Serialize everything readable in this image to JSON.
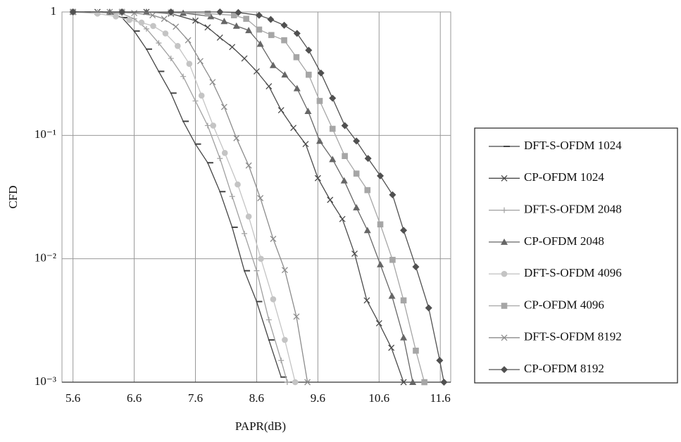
{
  "chart_data": {
    "type": "line",
    "x_label": "PAPR(dB)",
    "y_label": "CFD",
    "log_y": true,
    "grid": true,
    "legend": "right",
    "xlim": [
      5.42,
      11.77
    ],
    "xticks": [
      5.6,
      6.6,
      7.6,
      8.6,
      9.6,
      10.6,
      11.6
    ],
    "ylim": [
      0.001,
      1
    ],
    "yticks": [
      1,
      {
        "value": 0.1,
        "label": "10⁻¹"
      },
      {
        "value": 0.01,
        "label": "10⁻²"
      },
      {
        "value": 0.001,
        "label": "10⁻³"
      }
    ],
    "series": [
      {
        "name": "DFT-S-OFDM 1024",
        "color": "#444444",
        "marker": "dash",
        "x": [
          5.6,
          5.8,
          6.0,
          6.2,
          6.4,
          6.6,
          6.8,
          7.0,
          7.2,
          7.4,
          7.6,
          7.8,
          8.0,
          8.2,
          8.4,
          8.6,
          8.8,
          9.0
        ],
        "values": [
          1,
          1,
          1,
          0.98,
          0.9,
          0.7,
          0.5,
          0.33,
          0.22,
          0.13,
          0.085,
          0.06,
          0.035,
          0.018,
          0.008,
          0.0045,
          0.0022,
          0.0011
        ]
      },
      {
        "name": "CP-OFDM 1024",
        "color": "#4a4a4a",
        "marker": "x",
        "x": [
          5.6,
          6.0,
          6.4,
          6.8,
          7.2,
          7.6,
          7.8,
          8.0,
          8.2,
          8.4,
          8.6,
          8.8,
          9.0,
          9.2,
          9.4,
          9.6,
          9.8,
          10.0,
          10.2,
          10.4,
          10.6,
          10.8,
          11.0
        ],
        "values": [
          1,
          1,
          1,
          1,
          0.97,
          0.85,
          0.75,
          0.62,
          0.52,
          0.42,
          0.33,
          0.25,
          0.16,
          0.115,
          0.085,
          0.045,
          0.03,
          0.021,
          0.011,
          0.0046,
          0.003,
          0.0019,
          0.001
        ]
      },
      {
        "name": "DFT-S-OFDM 2048",
        "color": "#a0a0a0",
        "marker": "plus",
        "x": [
          5.6,
          6.0,
          6.4,
          6.6,
          6.8,
          7.0,
          7.2,
          7.4,
          7.6,
          7.8,
          8.0,
          8.2,
          8.4,
          8.6,
          8.8,
          9.0,
          9.1
        ],
        "values": [
          1,
          1,
          0.97,
          0.88,
          0.73,
          0.56,
          0.42,
          0.3,
          0.19,
          0.12,
          0.065,
          0.032,
          0.016,
          0.008,
          0.0032,
          0.0015,
          0.001
        ]
      },
      {
        "name": "CP-OFDM  2048",
        "color": "#666666",
        "marker": "triangle",
        "x": [
          5.6,
          6.2,
          6.8,
          7.4,
          7.85,
          8.07,
          8.27,
          8.47,
          8.66,
          8.87,
          9.06,
          9.26,
          9.44,
          9.63,
          9.84,
          10.03,
          10.23,
          10.41,
          10.62,
          10.81,
          11.0,
          11.15
        ],
        "values": [
          1,
          1,
          1,
          0.98,
          0.92,
          0.84,
          0.77,
          0.71,
          0.55,
          0.37,
          0.31,
          0.24,
          0.157,
          0.09,
          0.064,
          0.043,
          0.026,
          0.017,
          0.009,
          0.005,
          0.0023,
          0.001
        ]
      },
      {
        "name": "DFT-S-OFDM 4096",
        "color": "#c4c4c4",
        "marker": "circle",
        "x": [
          5.6,
          6.0,
          6.3,
          6.52,
          6.72,
          6.91,
          7.11,
          7.31,
          7.5,
          7.7,
          7.89,
          8.08,
          8.29,
          8.47,
          8.67,
          8.87,
          9.06,
          9.23
        ],
        "values": [
          1,
          0.97,
          0.92,
          0.86,
          0.82,
          0.77,
          0.67,
          0.53,
          0.38,
          0.21,
          0.12,
          0.072,
          0.04,
          0.022,
          0.01,
          0.0047,
          0.0022,
          0.001
        ]
      },
      {
        "name": "CP-OFDM 4096",
        "color": "#a6a6a6",
        "marker": "square",
        "x": [
          5.6,
          6.4,
          7.2,
          7.8,
          8.23,
          8.43,
          8.64,
          8.84,
          9.05,
          9.25,
          9.45,
          9.63,
          9.84,
          10.04,
          10.23,
          10.41,
          10.62,
          10.82,
          11.0,
          11.2,
          11.34
        ],
        "values": [
          1,
          1,
          0.99,
          0.97,
          0.94,
          0.88,
          0.72,
          0.65,
          0.59,
          0.43,
          0.31,
          0.19,
          0.113,
          0.068,
          0.049,
          0.036,
          0.019,
          0.0098,
          0.0046,
          0.0018,
          0.001
        ]
      },
      {
        "name": "DFT-S-OFDM 8192",
        "color": "#8c8c8c",
        "marker": "x",
        "x": [
          5.6,
          6.2,
          6.6,
          6.9,
          7.09,
          7.28,
          7.48,
          7.68,
          7.88,
          8.07,
          8.27,
          8.47,
          8.66,
          8.87,
          9.06,
          9.25,
          9.43
        ],
        "values": [
          1,
          1,
          0.98,
          0.94,
          0.88,
          0.76,
          0.59,
          0.4,
          0.27,
          0.17,
          0.095,
          0.057,
          0.031,
          0.0145,
          0.0081,
          0.0034,
          0.001
        ]
      },
      {
        "name": "CP-OFDM 8192",
        "color": "#505050",
        "marker": "diamond",
        "x": [
          5.6,
          6.4,
          7.2,
          8.0,
          8.3,
          8.64,
          8.83,
          9.05,
          9.26,
          9.45,
          9.65,
          9.84,
          10.04,
          10.23,
          10.42,
          10.62,
          10.82,
          11.0,
          11.2,
          11.41,
          11.59,
          11.66
        ],
        "values": [
          1,
          1,
          1,
          1,
          0.99,
          0.94,
          0.87,
          0.78,
          0.67,
          0.49,
          0.32,
          0.2,
          0.12,
          0.09,
          0.065,
          0.047,
          0.033,
          0.017,
          0.0086,
          0.004,
          0.0015,
          0.001
        ]
      }
    ]
  }
}
